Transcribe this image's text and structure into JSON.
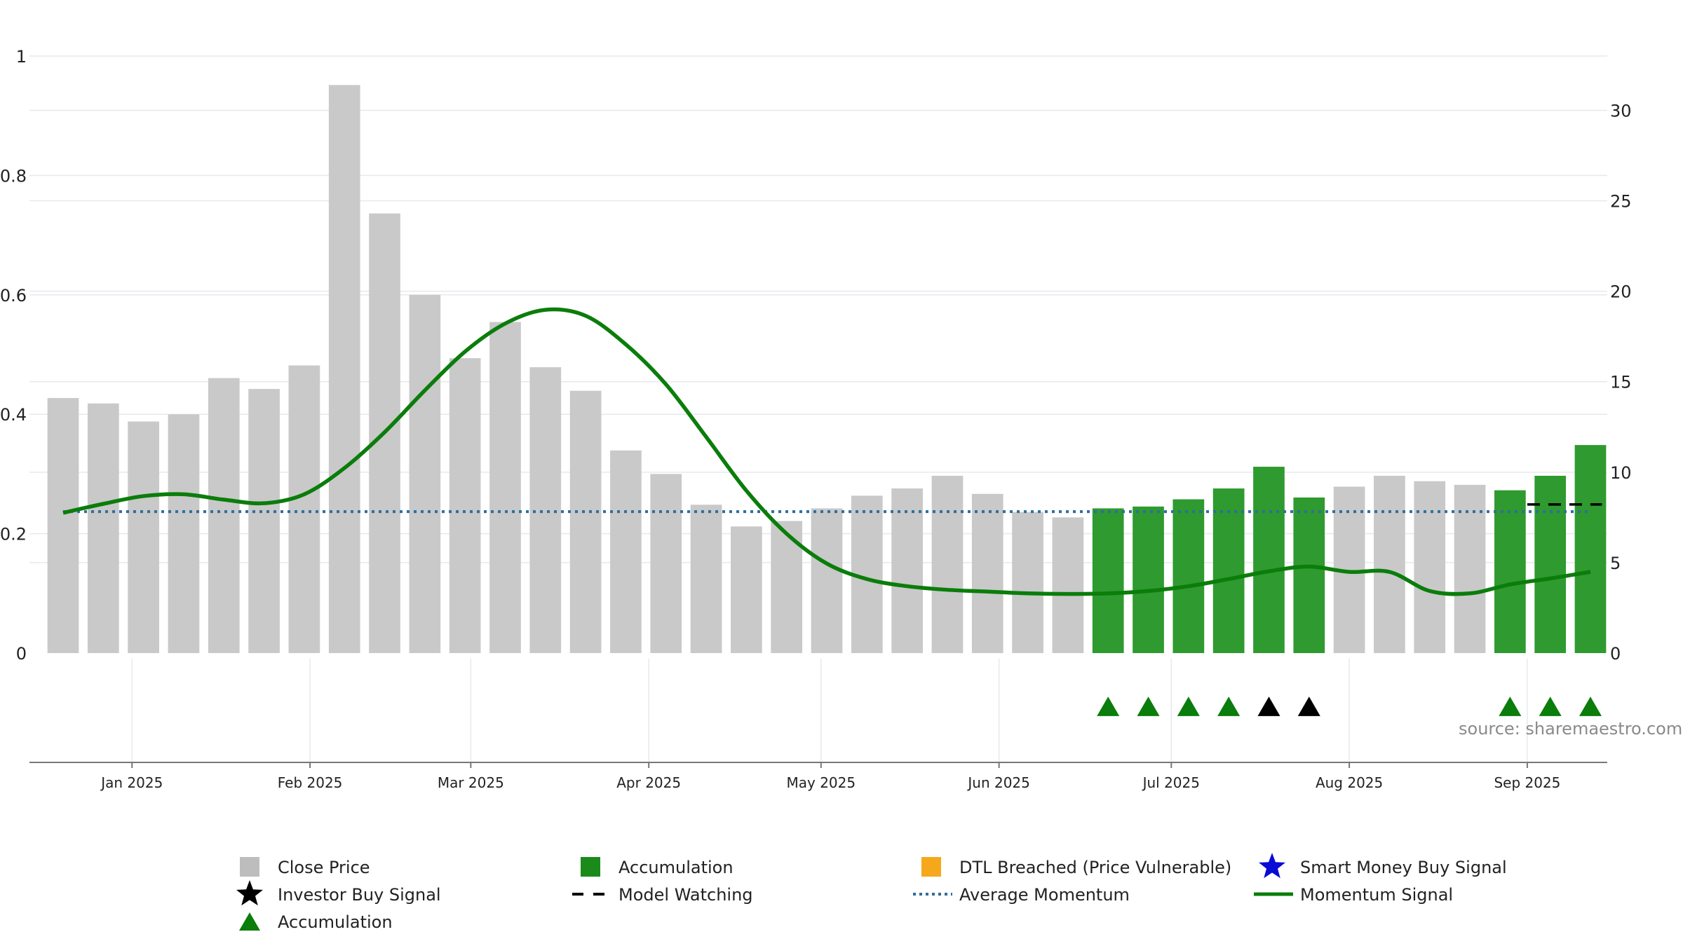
{
  "chart_data": {
    "type": "bar",
    "title": "",
    "xlabel": "",
    "ylabel": "",
    "x": [
      "2024-12-20",
      "2024-12-27",
      "2025-01-03",
      "2025-01-10",
      "2025-01-17",
      "2025-01-24",
      "2025-01-31",
      "2025-02-07",
      "2025-02-14",
      "2025-02-21",
      "2025-02-28",
      "2025-03-07",
      "2025-03-14",
      "2025-03-21",
      "2025-03-28",
      "2025-04-04",
      "2025-04-11",
      "2025-04-18",
      "2025-04-25",
      "2025-05-02",
      "2025-05-09",
      "2025-05-16",
      "2025-05-23",
      "2025-05-30",
      "2025-06-06",
      "2025-06-13",
      "2025-06-20",
      "2025-06-27",
      "2025-07-04",
      "2025-07-11",
      "2025-07-18",
      "2025-07-25",
      "2025-08-01",
      "2025-08-08",
      "2025-08-15",
      "2025-08-22",
      "2025-08-29",
      "2025-09-05",
      "2025-09-12"
    ],
    "x_ticks": [
      "Jan 2025",
      "Feb 2025",
      "Mar 2025",
      "Apr 2025",
      "May 2025",
      "Jun 2025",
      "Jul 2025",
      "Aug 2025",
      "Sep 2025"
    ],
    "x_tick_dates": [
      "2025-01-01",
      "2025-02-01",
      "2025-03-01",
      "2025-04-01",
      "2025-05-01",
      "2025-06-01",
      "2025-07-01",
      "2025-08-01",
      "2025-09-01"
    ],
    "y_left": {
      "ylim": [
        0,
        1
      ],
      "ticks": [
        "0",
        "0.2",
        "0.4",
        "0.6",
        "0.8",
        "1"
      ]
    },
    "y_right": {
      "ylim": [
        0,
        33
      ],
      "ticks": [
        "0",
        "5",
        "10",
        "15",
        "20",
        "25",
        "30"
      ]
    },
    "grid": true,
    "legend_position": "bottom",
    "series": [
      {
        "name": "Close Price",
        "kind": "bar",
        "axis": "right",
        "values": [
          14.1,
          13.8,
          12.8,
          13.2,
          15.2,
          14.6,
          15.9,
          31.4,
          24.3,
          19.8,
          16.3,
          18.3,
          15.8,
          14.5,
          11.2,
          9.9,
          8.2,
          7.0,
          7.3,
          8.0,
          8.7,
          9.1,
          9.8,
          8.8,
          7.8,
          7.5,
          8.0,
          8.1,
          8.5,
          9.1,
          10.3,
          8.6,
          9.2,
          9.8,
          9.5,
          9.3,
          9.0,
          9.8,
          11.5
        ],
        "highlight": [
          false,
          false,
          false,
          false,
          false,
          false,
          false,
          false,
          false,
          false,
          false,
          false,
          false,
          false,
          false,
          false,
          false,
          false,
          false,
          false,
          false,
          false,
          false,
          false,
          false,
          false,
          true,
          true,
          true,
          true,
          true,
          true,
          false,
          false,
          false,
          false,
          true,
          true,
          true
        ]
      },
      {
        "name": "Momentum Signal",
        "kind": "line",
        "axis": "left",
        "values": [
          0.235,
          0.25,
          0.263,
          0.266,
          0.257,
          0.251,
          0.266,
          0.31,
          0.37,
          0.44,
          0.505,
          0.552,
          0.575,
          0.565,
          0.517,
          0.45,
          0.362,
          0.272,
          0.2,
          0.15,
          0.124,
          0.112,
          0.106,
          0.103,
          0.1,
          0.099,
          0.1,
          0.104,
          0.112,
          0.124,
          0.137,
          0.145,
          0.136,
          0.136,
          0.104,
          0.1,
          0.115,
          0.125,
          0.136
        ]
      },
      {
        "name": "Average Momentum",
        "kind": "hline",
        "axis": "left",
        "value": 0.237
      },
      {
        "name": "Model Watching",
        "kind": "segment",
        "axis": "left",
        "value": 0.249,
        "x_range": [
          "2025-09-01",
          "2025-09-14"
        ]
      },
      {
        "name": "Accumulation",
        "kind": "markers",
        "dates": [
          "2025-06-20",
          "2025-06-27",
          "2025-07-04",
          "2025-07-11",
          "2025-08-29",
          "2025-09-05",
          "2025-09-12"
        ]
      },
      {
        "name": "Investor Buy Signal",
        "kind": "markers",
        "dates": [
          "2025-07-18",
          "2025-07-25"
        ]
      }
    ],
    "legend": [
      {
        "label": "Close Price",
        "symbol": "square",
        "color": "#bdbdbd"
      },
      {
        "label": "Accumulation",
        "symbol": "square",
        "color": "#1a8a1a"
      },
      {
        "label": "DTL Breached (Price Vulnerable)",
        "symbol": "square",
        "color": "#f5a81c"
      },
      {
        "label": "Smart Money Buy Signal",
        "symbol": "star",
        "color": "#0a0ad6"
      },
      {
        "label": "Investor Buy Signal",
        "symbol": "star",
        "color": "#000000"
      },
      {
        "label": "Model Watching",
        "symbol": "dash",
        "color": "#000000"
      },
      {
        "label": "Average Momentum",
        "symbol": "dotted",
        "color": "#2e6e9e"
      },
      {
        "label": "Momentum Signal",
        "symbol": "line",
        "color": "#0a7d0a"
      },
      {
        "label": "Accumulation",
        "symbol": "triangle",
        "color": "#0a7d0a"
      }
    ],
    "source": "source: sharemaestro.com"
  },
  "colors": {
    "bar_normal": "#c9c9c9",
    "bar_highlight": "#2f9a2f",
    "momentum_line": "#0a7d0a",
    "average_line": "#2e6e9e",
    "accumulation_marker": "#0a7d0a",
    "investor_marker": "#000000",
    "grid": "#e6e9ee"
  }
}
